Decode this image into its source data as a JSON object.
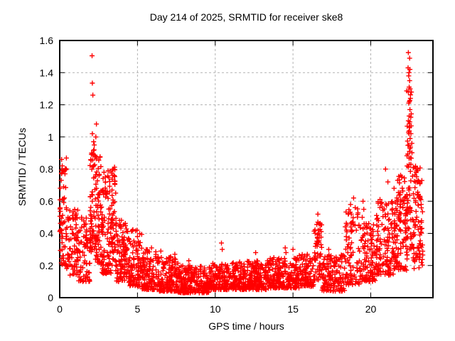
{
  "chart_data": {
    "type": "scatter",
    "title": "Day 214 of 2025, SRMTID for receiver ske8",
    "xlabel": "GPS time / hours",
    "ylabel": "SRMTID / TECUs",
    "xlim": [
      0,
      24
    ],
    "ylim": [
      0,
      1.6
    ],
    "xticks": [
      0,
      5,
      10,
      15,
      20
    ],
    "xtick_labels": [
      "0",
      "5",
      "10",
      "15",
      "20"
    ],
    "yticks": [
      0,
      0.2,
      0.4,
      0.6,
      0.8,
      1,
      1.2,
      1.4,
      1.6
    ],
    "ytick_labels": [
      "0",
      "0.2",
      "0.4",
      "0.6",
      "0.8",
      "1",
      "1.2",
      "1.4",
      "1.6"
    ],
    "grid": true,
    "legend": "none",
    "marker": "plus",
    "marker_color": "#ff0000",
    "grid_color": "#b3b3b3",
    "axis_color": "#000000",
    "background": "#ffffff",
    "seed": 20250214,
    "point_bands_format": [
      "t_start_hours",
      "t_end_hours",
      "y_min_TECUs",
      "y_max_TECUs",
      "num_points",
      "low_bias_exponent"
    ],
    "point_bands": [
      [
        0.0,
        0.45,
        0.2,
        0.87,
        55,
        1.5
      ],
      [
        0.45,
        1.2,
        0.14,
        0.55,
        80,
        1.4
      ],
      [
        1.2,
        1.95,
        0.1,
        0.5,
        70,
        1.4
      ],
      [
        1.95,
        2.3,
        0.28,
        0.92,
        60,
        1.25
      ],
      [
        2.3,
        2.65,
        0.22,
        0.88,
        60,
        1.3
      ],
      [
        2.65,
        3.35,
        0.15,
        0.8,
        110,
        1.5
      ],
      [
        3.35,
        3.65,
        0.15,
        0.82,
        50,
        1.3
      ],
      [
        3.65,
        4.35,
        0.1,
        0.5,
        90,
        1.5
      ],
      [
        4.35,
        5.3,
        0.07,
        0.43,
        110,
        1.6
      ],
      [
        5.3,
        6.4,
        0.05,
        0.3,
        130,
        1.7
      ],
      [
        6.4,
        7.6,
        0.04,
        0.26,
        140,
        1.7
      ],
      [
        7.6,
        9.6,
        0.03,
        0.2,
        220,
        1.6
      ],
      [
        9.6,
        11.5,
        0.05,
        0.22,
        210,
        1.6
      ],
      [
        11.5,
        13.5,
        0.05,
        0.23,
        220,
        1.6
      ],
      [
        13.5,
        15.4,
        0.06,
        0.25,
        200,
        1.6
      ],
      [
        15.4,
        16.35,
        0.07,
        0.27,
        95,
        1.6
      ],
      [
        16.35,
        16.85,
        0.1,
        0.5,
        55,
        1.3
      ],
      [
        16.85,
        18.35,
        0.04,
        0.27,
        140,
        1.6
      ],
      [
        18.35,
        19.25,
        0.08,
        0.56,
        80,
        1.5
      ],
      [
        19.25,
        20.3,
        0.1,
        0.47,
        110,
        1.4
      ],
      [
        20.3,
        21.6,
        0.14,
        0.62,
        150,
        1.4
      ],
      [
        21.6,
        22.35,
        0.17,
        0.78,
        110,
        1.3
      ],
      [
        22.3,
        22.72,
        0.3,
        1.3,
        60,
        1.1
      ],
      [
        22.72,
        23.35,
        0.18,
        0.82,
        85,
        1.4
      ]
    ],
    "outlier_points": [
      [
        0.12,
        0.86
      ],
      [
        0.16,
        0.82
      ],
      [
        0.22,
        0.79
      ],
      [
        0.1,
        0.73
      ],
      [
        0.25,
        0.69
      ],
      [
        0.3,
        0.62
      ],
      [
        2.08,
        1.505
      ],
      [
        2.1,
        1.335
      ],
      [
        2.13,
        1.26
      ],
      [
        2.36,
        1.08
      ],
      [
        2.1,
        1.02
      ],
      [
        2.32,
        1.0
      ],
      [
        2.18,
        0.97
      ],
      [
        2.22,
        0.95
      ],
      [
        2.05,
        0.9
      ],
      [
        2.3,
        0.88
      ],
      [
        2.85,
        0.78
      ],
      [
        3.45,
        0.8
      ],
      [
        3.5,
        0.76
      ],
      [
        5.0,
        0.38
      ],
      [
        5.05,
        0.35
      ],
      [
        5.9,
        0.31
      ],
      [
        6.5,
        0.29
      ],
      [
        7.4,
        0.27
      ],
      [
        8.3,
        0.23
      ],
      [
        10.4,
        0.34
      ],
      [
        10.45,
        0.3
      ],
      [
        12.6,
        0.28
      ],
      [
        14.5,
        0.31
      ],
      [
        14.55,
        0.28
      ],
      [
        15.0,
        0.3
      ],
      [
        16.6,
        0.52
      ],
      [
        16.6,
        0.47
      ],
      [
        16.62,
        0.42
      ],
      [
        16.58,
        0.37
      ],
      [
        16.55,
        0.32
      ],
      [
        17.3,
        0.3
      ],
      [
        18.7,
        0.58
      ],
      [
        18.75,
        0.52
      ],
      [
        18.8,
        0.47
      ],
      [
        18.72,
        0.44
      ],
      [
        18.9,
        0.62
      ],
      [
        19.0,
        0.56
      ],
      [
        19.5,
        0.6
      ],
      [
        19.55,
        0.55
      ],
      [
        19.45,
        0.5
      ],
      [
        20.95,
        0.8
      ],
      [
        21.1,
        0.72
      ],
      [
        21.5,
        0.68
      ],
      [
        22.0,
        0.75
      ],
      [
        22.42,
        1.525
      ],
      [
        22.5,
        1.49
      ],
      [
        22.4,
        1.43
      ],
      [
        22.52,
        1.42
      ],
      [
        22.46,
        1.4
      ],
      [
        22.44,
        1.38
      ],
      [
        22.5,
        1.35
      ],
      [
        22.47,
        1.31
      ],
      [
        22.42,
        1.28
      ],
      [
        22.55,
        1.24
      ],
      [
        22.48,
        1.22
      ],
      [
        22.44,
        1.21
      ],
      [
        22.52,
        1.17
      ],
      [
        22.47,
        1.13
      ],
      [
        22.42,
        1.1
      ],
      [
        22.5,
        1.06
      ],
      [
        22.46,
        1.02
      ],
      [
        22.53,
        0.99
      ],
      [
        22.44,
        0.95
      ],
      [
        22.49,
        0.91
      ],
      [
        22.55,
        0.87
      ],
      [
        22.58,
        0.83
      ],
      [
        23.0,
        0.8
      ],
      [
        23.05,
        0.73
      ]
    ]
  }
}
